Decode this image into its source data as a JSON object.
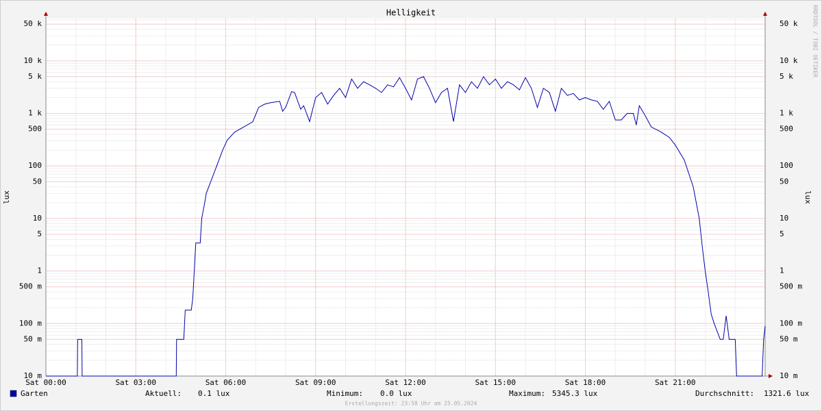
{
  "chart_data": {
    "type": "line",
    "title": "Helligkeit",
    "ylabel": "lux",
    "log_scale": true,
    "grid": true,
    "x": [
      0,
      1.05,
      1.06,
      1.2,
      1.21,
      4.35,
      4.36,
      4.6,
      4.65,
      4.85,
      4.9,
      4.95,
      5.0,
      5.15,
      5.2,
      5.3,
      5.35,
      5.5,
      5.7,
      5.9,
      6.05,
      6.3,
      6.6,
      6.9,
      7.1,
      7.3,
      7.5,
      7.8,
      7.9,
      8.0,
      8.2,
      8.3,
      8.5,
      8.6,
      8.8,
      9.0,
      9.2,
      9.4,
      9.6,
      9.8,
      10.0,
      10.2,
      10.4,
      10.6,
      10.8,
      11.0,
      11.2,
      11.4,
      11.6,
      11.8,
      12.0,
      12.2,
      12.4,
      12.6,
      12.8,
      13.0,
      13.2,
      13.4,
      13.6,
      13.8,
      14.0,
      14.2,
      14.4,
      14.6,
      14.8,
      15.0,
      15.2,
      15.4,
      15.6,
      15.8,
      16.0,
      16.2,
      16.4,
      16.6,
      16.8,
      17.0,
      17.2,
      17.4,
      17.6,
      17.8,
      18.0,
      18.2,
      18.4,
      18.6,
      18.8,
      19.0,
      19.2,
      19.4,
      19.6,
      19.7,
      19.8,
      20.0,
      20.2,
      20.5,
      20.8,
      21.0,
      21.3,
      21.6,
      21.8,
      21.9,
      22.0,
      22.1,
      22.2,
      22.3,
      22.5,
      22.6,
      22.7,
      22.8,
      23.0,
      23.05,
      23.9,
      23.95,
      24.0
    ],
    "series": [
      {
        "name": "Garten",
        "color": "#0000aa",
        "values": [
          0.01,
          0.01,
          0.05,
          0.05,
          0.01,
          0.01,
          0.05,
          0.05,
          0.18,
          0.18,
          0.3,
          1,
          3.4,
          3.4,
          10,
          20,
          30,
          50,
          100,
          200,
          310,
          440,
          550,
          690,
          1300,
          1500,
          1600,
          1700,
          1100,
          1300,
          2600,
          2500,
          1200,
          1400,
          700,
          2000,
          2500,
          1500,
          2200,
          3000,
          2000,
          4500,
          3000,
          4000,
          3500,
          3000,
          2500,
          3500,
          3200,
          4800,
          3000,
          1800,
          4500,
          5000,
          3000,
          1600,
          2500,
          3000,
          700,
          3500,
          2500,
          4000,
          3000,
          5000,
          3500,
          4500,
          3000,
          4000,
          3500,
          2800,
          4800,
          3000,
          1300,
          3000,
          2500,
          1100,
          3000,
          2200,
          2400,
          1800,
          2000,
          1800,
          1700,
          1200,
          1700,
          750,
          750,
          1000,
          1000,
          600,
          1400,
          900,
          550,
          450,
          350,
          250,
          130,
          40,
          10,
          3,
          1,
          0.4,
          0.15,
          0.1,
          0.05,
          0.05,
          0.14,
          0.05,
          0.05,
          0.01,
          0.01,
          0.05,
          0.09
        ]
      }
    ],
    "xlim": [
      0,
      24
    ],
    "xticks": [
      {
        "value": 0,
        "label": "Sat 00:00"
      },
      {
        "value": 3,
        "label": "Sat 03:00"
      },
      {
        "value": 6,
        "label": "Sat 06:00"
      },
      {
        "value": 9,
        "label": "Sat 09:00"
      },
      {
        "value": 12,
        "label": "Sat 12:00"
      },
      {
        "value": 15,
        "label": "Sat 15:00"
      },
      {
        "value": 18,
        "label": "Sat 18:00"
      },
      {
        "value": 21,
        "label": "Sat 21:00"
      }
    ],
    "ylim": [
      0.01,
      64000
    ],
    "yticks": [
      {
        "value": 50000,
        "label": "50 k"
      },
      {
        "value": 10000,
        "label": "10 k"
      },
      {
        "value": 5000,
        "label": "5 k"
      },
      {
        "value": 1000,
        "label": "1 k"
      },
      500,
      100,
      50,
      10,
      5,
      1,
      {
        "value": 0.5,
        "label": "500 m"
      },
      {
        "value": 0.1,
        "label": "100 m"
      },
      {
        "value": 0.05,
        "label": "50 m"
      },
      {
        "value": 0.01,
        "label": "10 m"
      }
    ],
    "stats": [
      {
        "label": "Aktuell:",
        "value": "0.1 lux"
      },
      {
        "label": "Minimum:",
        "value": "0.0 lux"
      },
      {
        "label": "Maximum:",
        "value": "5345.3 lux"
      },
      {
        "label": "Durchschnitt:",
        "value": "1321.6 lux"
      }
    ],
    "footer": "Erstellungszeit: 23:58 Uhr am 25.05.2024",
    "watermark": "RRDTOOL / TOBI OETIKER"
  }
}
